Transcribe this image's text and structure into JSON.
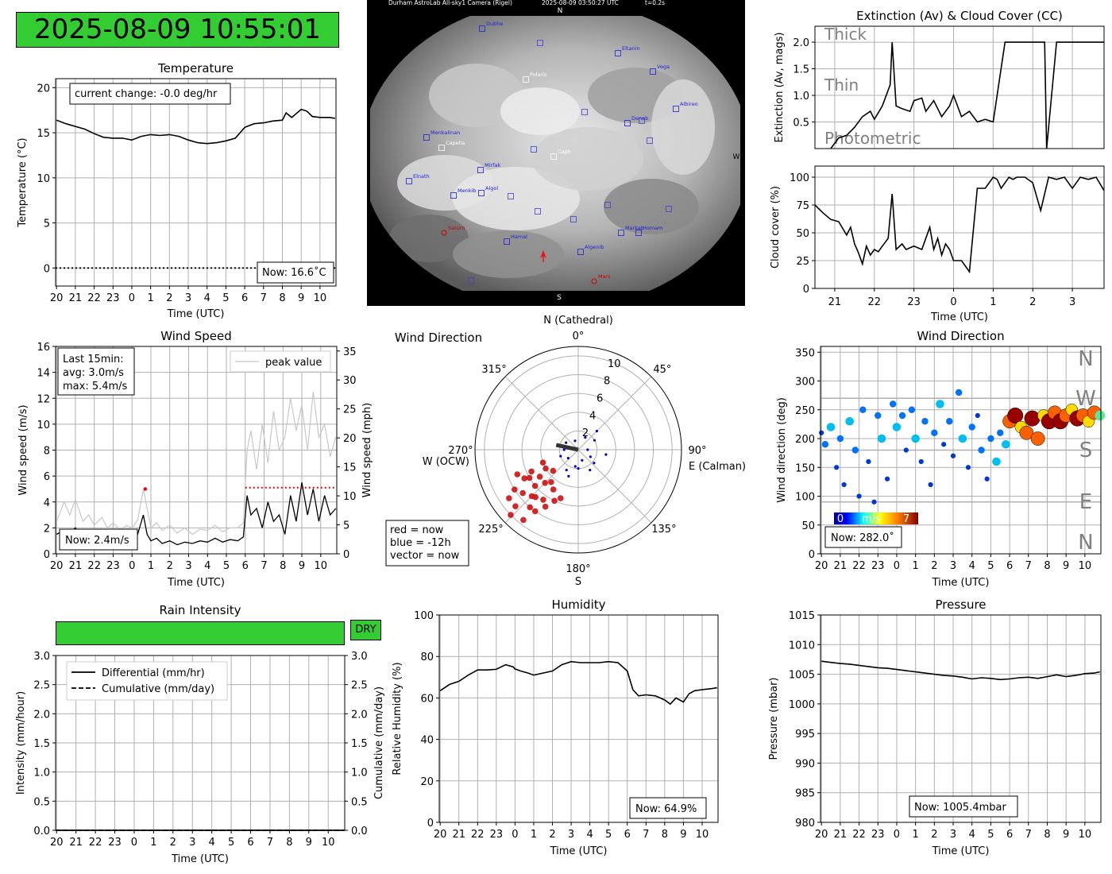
{
  "clock": "2025-08-09 10:55:01",
  "colors": {
    "green": "#33cc33",
    "grid": "#b0b0b0",
    "red": "#cc0000",
    "blue": "#0000cc",
    "gray": "#808080"
  },
  "sky": {
    "header_left": "Durham AstroLab All-sky1 Camera (Rigel)",
    "header_mid": "2025-08-09 03:50:27 UTC",
    "header_right": "t=0.2s",
    "north": "N",
    "south": "S",
    "west": "W",
    "stars": [
      "Dubhe",
      "Eltanin",
      "Vega",
      "Polaris",
      "Albireo",
      "Deneb",
      "Menkalinan",
      "Capella",
      "Caph",
      "Mirfak",
      "Elnath",
      "Menkib",
      "Algol",
      "Hamal",
      "Markab",
      "Homam",
      "Algenib",
      "Saturn",
      "Mars"
    ]
  },
  "temperature": {
    "chart_data": {
      "type": "line",
      "title": "Temperature",
      "xlabel": "Time (UTC)",
      "ylabel": "Temperature (°C)",
      "xticks": [
        "20",
        "21",
        "22",
        "23",
        "0",
        "1",
        "2",
        "3",
        "4",
        "5",
        "6",
        "7",
        "8",
        "9",
        "10"
      ],
      "ylim": [
        -2,
        21
      ],
      "yticks": [
        0,
        5,
        10,
        15,
        20
      ],
      "x": [
        -4.0,
        -3.5,
        -3.0,
        -2.5,
        -2.0,
        -1.5,
        -1.0,
        -0.5,
        0.0,
        0.5,
        1.0,
        1.5,
        2.0,
        2.5,
        3.0,
        3.5,
        4.0,
        4.5,
        5.0,
        5.5,
        6.0,
        6.5,
        7.0,
        7.5,
        8.0,
        8.2,
        8.5,
        9.0,
        9.3,
        9.6,
        10.0,
        10.5,
        10.8
      ],
      "values": [
        16.4,
        16.0,
        15.7,
        15.4,
        14.9,
        14.5,
        14.4,
        14.4,
        14.2,
        14.6,
        14.8,
        14.7,
        14.8,
        14.6,
        14.2,
        13.9,
        13.8,
        13.9,
        14.1,
        14.4,
        15.6,
        16.0,
        16.1,
        16.3,
        16.4,
        17.2,
        16.7,
        17.6,
        17.4,
        16.8,
        16.7,
        16.7,
        16.6
      ],
      "freezing_line": 0,
      "annotation": "current change: -0.0 deg/hr",
      "now": "Now: 16.6˚C"
    }
  },
  "extinction": {
    "chart_data": {
      "type": "line",
      "title": "Extinction (Av) & Cloud Cover (CC)",
      "ylabel": "Extinction (Av, mags)",
      "ylim": [
        0,
        2.3
      ],
      "yticks": [
        0.5,
        1.0,
        1.5,
        2.0
      ],
      "xlim": [
        20.5,
        27.8
      ],
      "bands": [
        "Thick",
        "Thin",
        "Photometric"
      ],
      "x": [
        20.9,
        21.1,
        21.3,
        21.5,
        21.7,
        21.9,
        22.0,
        22.2,
        22.4,
        22.45,
        22.55,
        22.7,
        22.9,
        23.0,
        23.2,
        23.3,
        23.5,
        23.7,
        23.9,
        24.0,
        24.2,
        24.4,
        24.6,
        24.8,
        25.0,
        25.3,
        25.4,
        25.6,
        25.8,
        26.0,
        26.3,
        26.35,
        26.6,
        26.65,
        26.8,
        27.0,
        27.2,
        27.4,
        27.8
      ],
      "values": [
        0.0,
        0.2,
        0.25,
        0.4,
        0.6,
        0.7,
        0.55,
        0.8,
        1.2,
        2.0,
        0.8,
        0.75,
        0.7,
        0.9,
        0.95,
        0.7,
        0.9,
        0.6,
        0.8,
        1.0,
        0.6,
        0.7,
        0.5,
        0.55,
        0.5,
        2.0,
        2.0,
        2.0,
        2.0,
        2.0,
        2.0,
        0.0,
        2.0,
        2.0,
        2.0,
        2.0,
        2.0,
        2.0,
        2.0
      ]
    }
  },
  "cloud": {
    "chart_data": {
      "type": "line",
      "ylabel": "Cloud cover (%)",
      "xlabel": "Time (UTC)",
      "xticks": [
        "21",
        "22",
        "23",
        "0",
        "1",
        "2",
        "3"
      ],
      "xlim": [
        20.5,
        27.8
      ],
      "ylim": [
        0,
        110
      ],
      "yticks": [
        0,
        25,
        50,
        75,
        100
      ],
      "x": [
        20.5,
        20.7,
        20.9,
        21.1,
        21.3,
        21.4,
        21.5,
        21.6,
        21.7,
        21.8,
        21.9,
        22.0,
        22.1,
        22.2,
        22.35,
        22.45,
        22.55,
        22.7,
        22.8,
        23.0,
        23.2,
        23.4,
        23.5,
        23.6,
        23.7,
        23.8,
        23.9,
        24.0,
        24.2,
        24.4,
        24.6,
        24.8,
        24.9,
        25.0,
        25.1,
        25.2,
        25.4,
        25.5,
        25.6,
        25.8,
        26.0,
        26.2,
        26.4,
        26.6,
        26.8,
        27.0,
        27.2,
        27.4,
        27.6,
        27.8
      ],
      "values": [
        75,
        68,
        62,
        60,
        48,
        55,
        40,
        32,
        22,
        38,
        30,
        35,
        33,
        38,
        45,
        85,
        35,
        40,
        35,
        38,
        35,
        55,
        35,
        45,
        30,
        40,
        35,
        25,
        25,
        15,
        90,
        90,
        95,
        100,
        98,
        90,
        100,
        98,
        100,
        100,
        95,
        70,
        100,
        98,
        100,
        90,
        100,
        98,
        100,
        88
      ]
    }
  },
  "wind_speed": {
    "chart_data": {
      "type": "line",
      "title": "Wind Speed",
      "xlabel": "Time (UTC)",
      "ylabel": "Wind speed (m/s)",
      "y2label": "Wind speed (mph)",
      "xticks": [
        "20",
        "21",
        "22",
        "23",
        "0",
        "1",
        "2",
        "3",
        "4",
        "5",
        "6",
        "7",
        "8",
        "9",
        "10"
      ],
      "ylim": [
        0,
        16
      ],
      "yticks": [
        0,
        2,
        4,
        6,
        8,
        10,
        12,
        14,
        16
      ],
      "y2ticks": [
        0,
        5,
        10,
        15,
        20,
        25,
        30,
        35
      ],
      "legend": "peak value",
      "stats": [
        "Last 15min:",
        "avg: 3.0m/s",
        "max: 5.4m/s"
      ],
      "now": "Now: 2.4m/s",
      "series": [
        {
          "name": "peak value",
          "x": [
            -4.0,
            -3.6,
            -3.3,
            -3.0,
            -2.6,
            -2.3,
            -2.0,
            -1.6,
            -1.3,
            -1.0,
            -0.6,
            -0.3,
            0.0,
            0.3,
            0.6,
            0.8,
            1.0,
            1.3,
            1.6,
            2.0,
            2.4,
            2.8,
            3.2,
            3.6,
            4.0,
            4.4,
            4.8,
            5.2,
            5.6,
            5.9,
            6.1,
            6.3,
            6.6,
            6.9,
            7.2,
            7.5,
            7.8,
            8.1,
            8.4,
            8.7,
            9.0,
            9.3,
            9.6,
            9.9,
            10.2,
            10.5,
            10.8
          ],
          "values": [
            2.5,
            4.0,
            3.0,
            4.2,
            2.5,
            3.0,
            2.2,
            2.8,
            2.0,
            2.4,
            1.8,
            2.2,
            2.0,
            2.6,
            5.0,
            3.5,
            2.0,
            2.4,
            1.8,
            2.2,
            1.6,
            2.0,
            1.5,
            1.9,
            1.8,
            2.2,
            1.7,
            2.0,
            2.0,
            2.4,
            8.0,
            9.5,
            6.5,
            10.0,
            7.0,
            11.0,
            8.0,
            9.0,
            12.0,
            9.5,
            11.5,
            8.0,
            12.5,
            9.0,
            10.0,
            7.5,
            9.0
          ]
        },
        {
          "name": "speed",
          "x": [
            -4.0,
            -3.6,
            -3.3,
            -3.0,
            -2.6,
            -2.3,
            -2.0,
            -1.6,
            -1.3,
            -1.0,
            -0.6,
            -0.3,
            0.0,
            0.3,
            0.6,
            0.8,
            1.0,
            1.3,
            1.6,
            2.0,
            2.4,
            2.8,
            3.2,
            3.6,
            4.0,
            4.4,
            4.8,
            5.2,
            5.6,
            5.9,
            6.1,
            6.3,
            6.6,
            6.9,
            7.2,
            7.5,
            7.8,
            8.1,
            8.4,
            8.7,
            9.0,
            9.3,
            9.6,
            9.9,
            10.2,
            10.5,
            10.8
          ],
          "values": [
            1.5,
            1.8,
            1.6,
            2.0,
            1.2,
            1.5,
            1.3,
            1.6,
            1.2,
            1.4,
            1.0,
            1.3,
            1.2,
            1.5,
            3.0,
            1.5,
            1.0,
            1.2,
            0.8,
            1.0,
            0.7,
            0.9,
            0.8,
            1.0,
            0.9,
            1.2,
            0.9,
            1.1,
            1.0,
            1.3,
            4.5,
            3.0,
            3.5,
            2.0,
            4.0,
            2.5,
            3.0,
            1.5,
            4.5,
            2.5,
            5.5,
            3.0,
            5.0,
            2.5,
            4.5,
            3.0,
            3.5
          ]
        }
      ],
      "peak_marker": {
        "x": 0.7,
        "y": 5.0
      },
      "recent_peak": {
        "x_start": 6.0,
        "x_end": 10.8,
        "y": 5.1
      }
    }
  },
  "wind_polar": {
    "chart_data": {
      "type": "scatter",
      "title": "Wind Direction",
      "north_label": "N (Cathedral)",
      "east_label": "E (Calman)",
      "west_label": "W (OCW)",
      "south_label": "S",
      "angle_labels": [
        "0°",
        "45°",
        "90°",
        "135°",
        "180°",
        "225°",
        "270°",
        "315°"
      ],
      "radii": [
        2,
        4,
        6,
        8,
        10
      ],
      "rmax": 11,
      "legend": [
        "red = now",
        "blue = -12h",
        "vector = now"
      ],
      "vector": {
        "dir": 282,
        "speed": 2.4
      },
      "red_points": [
        [
          230,
          6
        ],
        [
          225,
          7
        ],
        [
          220,
          8
        ],
        [
          235,
          5
        ],
        [
          240,
          6
        ],
        [
          215,
          6.5
        ],
        [
          245,
          5.5
        ],
        [
          228,
          9
        ],
        [
          210,
          7
        ],
        [
          250,
          4
        ],
        [
          220,
          4.5
        ],
        [
          232,
          7.5
        ],
        [
          238,
          8
        ],
        [
          225,
          5
        ],
        [
          218,
          9.5
        ],
        [
          242,
          6.5
        ],
        [
          212,
          5
        ],
        [
          205,
          6
        ],
        [
          230,
          3.5
        ],
        [
          222,
          6.8
        ],
        [
          235,
          9
        ],
        [
          215,
          8
        ],
        [
          248,
          7
        ],
        [
          200,
          5.5
        ],
        [
          226,
          10
        ],
        [
          240,
          4
        ]
      ],
      "blue_points": [
        [
          60,
          2
        ],
        [
          120,
          1.5
        ],
        [
          180,
          2
        ],
        [
          90,
          1
        ],
        [
          200,
          3
        ],
        [
          150,
          2.5
        ],
        [
          30,
          1.5
        ],
        [
          250,
          2
        ],
        [
          300,
          1.5
        ],
        [
          340,
          1
        ],
        [
          100,
          3
        ],
        [
          160,
          1.2
        ],
        [
          210,
          2.5
        ],
        [
          270,
          1.5
        ],
        [
          130,
          2.2
        ],
        [
          45,
          2.8
        ],
        [
          190,
          1.8
        ],
        [
          230,
          1.4
        ]
      ]
    }
  },
  "wind_dir_time": {
    "chart_data": {
      "type": "scatter",
      "title": "Wind Direction",
      "xlabel": "Time (UTC)",
      "ylabel": "Wind direction (deg)",
      "xticks": [
        "20",
        "21",
        "22",
        "23",
        "0",
        "1",
        "2",
        "3",
        "4",
        "5",
        "6",
        "7",
        "8",
        "9",
        "10"
      ],
      "ylim": [
        0,
        360
      ],
      "yticks": [
        0,
        50,
        100,
        150,
        200,
        250,
        300,
        350
      ],
      "compass": [
        "N",
        "W",
        "S",
        "E",
        "N"
      ],
      "colorbar": {
        "min": "0",
        "label": "m/s",
        "max": "7"
      },
      "now": "Now: 282.0˚",
      "x": [
        -4.0,
        -3.8,
        -3.5,
        -3.2,
        -3.0,
        -2.8,
        -2.5,
        -2.2,
        -2.0,
        -1.8,
        -1.5,
        -1.2,
        -1.0,
        -0.8,
        -0.5,
        -0.2,
        0.0,
        0.3,
        0.5,
        0.8,
        1.0,
        1.3,
        1.5,
        1.8,
        2.0,
        2.3,
        2.5,
        2.8,
        3.0,
        3.3,
        3.5,
        3.8,
        4.0,
        4.3,
        4.5,
        4.8,
        5.0,
        5.3,
        5.5,
        5.8,
        6.0,
        6.3,
        6.6,
        6.9,
        7.2,
        7.5,
        7.8,
        8.1,
        8.4,
        8.7,
        9.0,
        9.3,
        9.6,
        9.9,
        10.2,
        10.5,
        10.8
      ],
      "values": [
        210,
        190,
        220,
        150,
        200,
        120,
        230,
        180,
        100,
        250,
        160,
        90,
        240,
        200,
        130,
        260,
        220,
        240,
        180,
        250,
        200,
        160,
        230,
        120,
        210,
        260,
        190,
        230,
        170,
        280,
        200,
        150,
        220,
        240,
        180,
        130,
        200,
        160,
        210,
        190,
        230,
        240,
        220,
        210,
        235,
        200,
        240,
        230,
        245,
        230,
        240,
        250,
        235,
        240,
        230,
        245,
        240
      ],
      "speeds": [
        1,
        2,
        3,
        1,
        2,
        1,
        3,
        2,
        1,
        2,
        1,
        1,
        2,
        3,
        1,
        2,
        3,
        2,
        1,
        2,
        3,
        1,
        2,
        1,
        2,
        3,
        1,
        2,
        1,
        2,
        3,
        1,
        2,
        1,
        2,
        1,
        2,
        3,
        2,
        3,
        6,
        7,
        5,
        6,
        7,
        6,
        5,
        7,
        6,
        7,
        6,
        5,
        7,
        6,
        5,
        6,
        4
      ]
    }
  },
  "rain": {
    "chart_data": {
      "type": "line",
      "title": "Rain Intensity",
      "status": "DRY",
      "xlabel": "Time (UTC)",
      "ylabel": "Intensity (mm/hour)",
      "y2label": "Cumulative (mm/day)",
      "xticks": [
        "20",
        "21",
        "22",
        "23",
        "0",
        "1",
        "2",
        "3",
        "4",
        "5",
        "6",
        "7",
        "8",
        "9",
        "10"
      ],
      "ylim": [
        0,
        3.0
      ],
      "yticks": [
        "0.0",
        "0.5",
        "1.0",
        "1.5",
        "2.0",
        "2.5",
        "3.0"
      ],
      "series": [
        {
          "name": "Differential (mm/hr)",
          "values": [
            0,
            0
          ]
        },
        {
          "name": "Cumulative (mm/day)",
          "values": [
            0,
            0
          ]
        }
      ]
    }
  },
  "humidity": {
    "chart_data": {
      "type": "line",
      "title": "Humidity",
      "xlabel": "Time (UTC)",
      "ylabel": "Relative Humidity (%)",
      "xticks": [
        "20",
        "21",
        "22",
        "23",
        "0",
        "1",
        "2",
        "3",
        "4",
        "5",
        "6",
        "7",
        "8",
        "9",
        "10"
      ],
      "ylim": [
        0,
        100
      ],
      "yticks": [
        0,
        20,
        40,
        60,
        80,
        100
      ],
      "now": "Now: 64.9%",
      "x": [
        -4.0,
        -3.5,
        -3.0,
        -2.5,
        -2.0,
        -1.5,
        -1.0,
        -0.5,
        -0.1,
        0.0,
        0.3,
        0.7,
        1.0,
        1.5,
        2.0,
        2.5,
        3.0,
        3.5,
        4.0,
        4.5,
        5.0,
        5.5,
        6.0,
        6.3,
        6.6,
        7.0,
        7.5,
        8.0,
        8.3,
        8.6,
        9.0,
        9.3,
        9.6,
        10.0,
        10.5,
        10.8
      ],
      "values": [
        63.5,
        66.5,
        68,
        71,
        73.5,
        73.5,
        73.8,
        76,
        75,
        74,
        73,
        72,
        71,
        72,
        73,
        76,
        77.5,
        77,
        77,
        77,
        77.5,
        77,
        73,
        64,
        61,
        61.5,
        61,
        59,
        57,
        60,
        58,
        62,
        63.5,
        64,
        64.5,
        64.9
      ]
    }
  },
  "pressure": {
    "chart_data": {
      "type": "line",
      "title": "Pressure",
      "xlabel": "Time (UTC)",
      "ylabel": "Pressure (mbar)",
      "xticks": [
        "20",
        "21",
        "22",
        "23",
        "0",
        "1",
        "2",
        "3",
        "4",
        "5",
        "6",
        "7",
        "8",
        "9",
        "10"
      ],
      "ylim": [
        980,
        1015
      ],
      "yticks": [
        980,
        985,
        990,
        995,
        1000,
        1005,
        1010,
        1015
      ],
      "now": "Now: 1005.4mbar",
      "x": [
        -4.0,
        -3.5,
        -3.0,
        -2.5,
        -2.0,
        -1.5,
        -1.0,
        -0.5,
        0.0,
        0.5,
        1.0,
        1.5,
        2.0,
        2.5,
        3.0,
        3.5,
        4.0,
        4.5,
        5.0,
        5.5,
        6.0,
        6.5,
        7.0,
        7.5,
        8.0,
        8.5,
        9.0,
        9.5,
        10.0,
        10.5,
        10.8
      ],
      "values": [
        1007.2,
        1007,
        1006.8,
        1006.7,
        1006.5,
        1006.3,
        1006.1,
        1006,
        1005.8,
        1005.6,
        1005.4,
        1005.2,
        1005,
        1004.8,
        1004.7,
        1004.5,
        1004.2,
        1004.4,
        1004.3,
        1004.1,
        1004.2,
        1004.4,
        1004.5,
        1004.3,
        1004.6,
        1004.9,
        1004.6,
        1004.8,
        1005.1,
        1005.2,
        1005.4
      ]
    }
  }
}
